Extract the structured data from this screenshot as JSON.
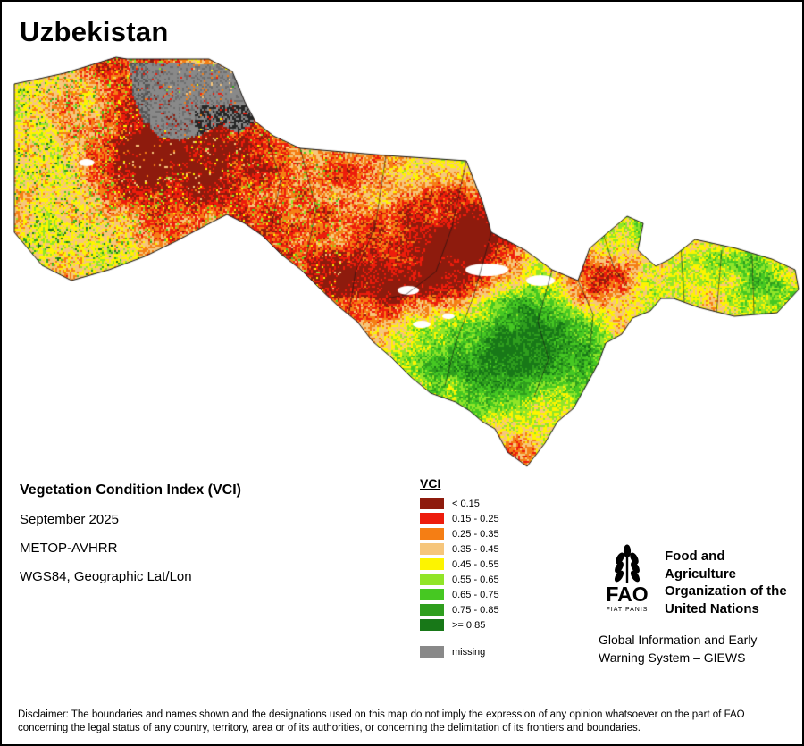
{
  "page": {
    "title": "Uzbekistan"
  },
  "info": {
    "heading": "Vegetation Condition Index (VCI)",
    "period": "September 2025",
    "sensor": "METOP-AVHRR",
    "projection": "WGS84, Geographic Lat/Lon"
  },
  "legend": {
    "title": "VCI",
    "classes": [
      {
        "label": "< 0.15",
        "color": "#8e1b0d"
      },
      {
        "label": "0.15 - 0.25",
        "color": "#ed1c0c"
      },
      {
        "label": "0.25 - 0.35",
        "color": "#f57e14"
      },
      {
        "label": "0.35 - 0.45",
        "color": "#f6c67c"
      },
      {
        "label": "0.45 - 0.55",
        "color": "#fdf400"
      },
      {
        "label": "0.55 - 0.65",
        "color": "#91e528"
      },
      {
        "label": "0.65 - 0.75",
        "color": "#46c822"
      },
      {
        "label": "0.75 - 0.85",
        "color": "#2f9e1e"
      },
      {
        "label": ">= 0.85",
        "color": "#187818"
      }
    ],
    "missing": {
      "label": "missing",
      "color": "#898989"
    }
  },
  "branding": {
    "fao_acronym": "FAO",
    "fao_motto": "FIAT PANIS",
    "org_name": "Food and Agriculture Organization of the United Nations",
    "giews": "Global Information and Early Warning System – GIEWS"
  },
  "disclaimer": "Disclaimer: The boundaries and names shown and the designations used on this map do not imply the expression of any opinion whatsoever on the part of FAO concerning the legal status of any country, territory, area or of its authorities, or concerning the delimitation of its frontiers and boundaries."
}
